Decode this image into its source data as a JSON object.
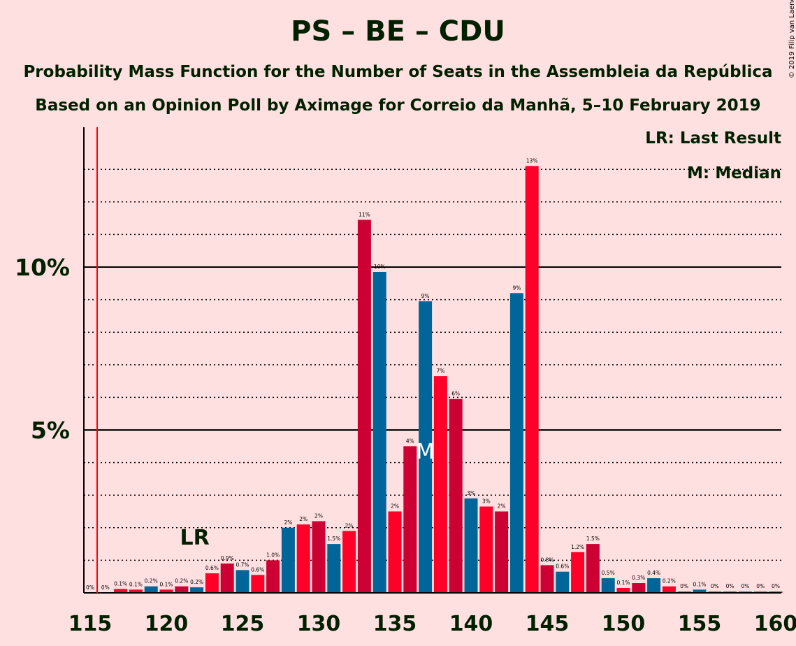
{
  "title": "PS – BE – CDU",
  "subtitle_1": "Probability Mass Function for the Number of Seats in the Assembleia da República",
  "subtitle_2": "Based on an Opinion Poll by Aximage for Correio da Manhã, 5–10 February 2019",
  "copyright": "© 2019 Filip van Laenen",
  "legend": {
    "last_result": "LR: Last Result",
    "median": "M: Median"
  },
  "markers": {
    "last_result_label": "LR",
    "median_label": "M"
  },
  "colors": {
    "background": "#ffe0e0",
    "ps": "#ff0028",
    "be": "#cc0033",
    "cdu": "#006699",
    "last_result_line": "#ff0000",
    "text": "#002000"
  },
  "chart_data": {
    "type": "bar",
    "x_axis_ticks": [
      "115",
      "120",
      "125",
      "130",
      "135",
      "140",
      "145",
      "150",
      "155",
      "160"
    ],
    "y_axis_ticks": [
      "5%",
      "10%"
    ],
    "xlim": [
      115,
      160
    ],
    "ylim": [
      0,
      14
    ],
    "last_result_seat": 122,
    "median_seat": 137,
    "series": [
      {
        "x": [
          115,
          116,
          117,
          118,
          119,
          120,
          121,
          122,
          123,
          124,
          125,
          126,
          127,
          128,
          129,
          130,
          131,
          132,
          133,
          134,
          135,
          136,
          137,
          138,
          139,
          140,
          141,
          142,
          143,
          144,
          145,
          146,
          147,
          148,
          149,
          150,
          151,
          152,
          153,
          154,
          155,
          156,
          157,
          158,
          159,
          160
        ],
        "values": [
          0,
          0,
          0.1,
          0.1,
          0.2,
          0.1,
          0.2,
          0.2,
          0.6,
          0.9,
          0.7,
          0.6,
          1.0,
          2,
          2,
          2,
          1.5,
          2,
          11,
          10,
          2,
          4,
          9,
          7,
          6,
          3,
          3,
          2,
          9,
          13,
          0.8,
          0.6,
          1.2,
          1.5,
          0.5,
          0.1,
          0.3,
          0.4,
          0.2,
          0,
          0.1,
          0,
          0,
          0,
          0,
          0
        ],
        "heights": [
          0,
          0,
          0.12,
          0.1,
          0.2,
          0.1,
          0.2,
          0.17,
          0.6,
          0.9,
          0.7,
          0.55,
          1.0,
          2.0,
          2.1,
          2.2,
          1.5,
          1.9,
          11.45,
          9.85,
          2.5,
          4.5,
          8.95,
          6.65,
          5.95,
          2.9,
          2.65,
          2.5,
          9.2,
          13.1,
          0.85,
          0.65,
          1.25,
          1.5,
          0.45,
          0.15,
          0.3,
          0.45,
          0.2,
          0.04,
          0.1,
          0.04,
          0.04,
          0.04,
          0.04,
          0.04
        ],
        "labels": [
          "0%",
          "0%",
          "0.1%",
          "0.1%",
          "0.2%",
          "0.1%",
          "0.2%",
          "0.2%",
          "0.6%",
          "0.9%",
          "0.7%",
          "0.6%",
          "1.0%",
          "2%",
          "2%",
          "2%",
          "1.5%",
          "2%",
          "11%",
          "10%",
          "2%",
          "4%",
          "9%",
          "7%",
          "6%",
          "3%",
          "3%",
          "2%",
          "9%",
          "13%",
          "0.8%",
          "0.6%",
          "1.2%",
          "1.5%",
          "0.5%",
          "0.1%",
          "0.3%",
          "0.4%",
          "0.2%",
          "0%",
          "0.1%",
          "0%",
          "0%",
          "0%",
          "0%",
          "0%"
        ],
        "party": [
          "ps",
          "ps",
          "ps",
          "ps",
          "cdu",
          "ps",
          "be",
          "cdu",
          "ps",
          "be",
          "cdu",
          "ps",
          "be",
          "cdu",
          "ps",
          "be",
          "cdu",
          "ps",
          "be",
          "cdu",
          "ps",
          "be",
          "cdu",
          "ps",
          "be",
          "cdu",
          "ps",
          "be",
          "cdu",
          "ps",
          "be",
          "cdu",
          "ps",
          "be",
          "cdu",
          "ps",
          "be",
          "cdu",
          "ps",
          "be",
          "cdu",
          "ps",
          "be",
          "cdu",
          "ps",
          "be"
        ]
      }
    ]
  }
}
